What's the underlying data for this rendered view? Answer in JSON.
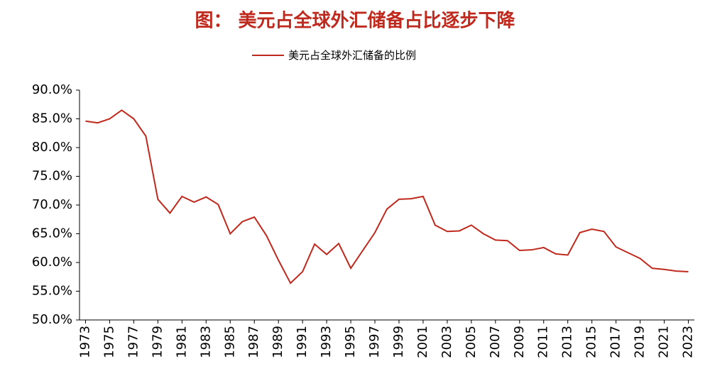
{
  "chart_data": {
    "type": "line",
    "title": "图： 美元占全球外汇储备占比逐步下降",
    "x": [
      1973,
      1974,
      1975,
      1976,
      1977,
      1978,
      1979,
      1980,
      1981,
      1982,
      1983,
      1984,
      1985,
      1986,
      1987,
      1988,
      1989,
      1990,
      1991,
      1992,
      1993,
      1994,
      1995,
      1996,
      1997,
      1998,
      1999,
      2000,
      2001,
      2002,
      2003,
      2004,
      2005,
      2006,
      2007,
      2008,
      2009,
      2010,
      2011,
      2012,
      2013,
      2014,
      2015,
      2016,
      2017,
      2018,
      2019,
      2020,
      2021,
      2022,
      2023
    ],
    "series": [
      {
        "name": "美元占全球外汇储备的比例",
        "color": "#c0291d",
        "values": [
          84.6,
          84.3,
          85.0,
          86.5,
          85.0,
          82.0,
          71.0,
          68.6,
          71.5,
          70.5,
          71.4,
          70.1,
          65.0,
          67.1,
          67.9,
          64.7,
          60.4,
          56.4,
          58.4,
          63.2,
          61.4,
          63.3,
          59.0,
          62.1,
          65.2,
          69.3,
          71.0,
          71.1,
          71.5,
          66.5,
          65.4,
          65.5,
          66.5,
          65.0,
          63.9,
          63.8,
          62.1,
          62.2,
          62.6,
          61.5,
          61.3,
          65.2,
          65.8,
          65.4,
          62.7,
          61.7,
          60.7,
          59.0,
          58.8,
          58.5,
          58.4
        ]
      }
    ],
    "xlim": [
      1972.5,
      2023.5
    ],
    "xticks": [
      1973,
      1975,
      1977,
      1979,
      1981,
      1983,
      1985,
      1987,
      1989,
      1991,
      1993,
      1995,
      1997,
      1999,
      2001,
      2003,
      2005,
      2007,
      2009,
      2011,
      2013,
      2015,
      2017,
      2019,
      2021,
      2023
    ],
    "ylim": [
      50,
      90
    ],
    "yticks": [
      {
        "value": 50,
        "label": "50.0%"
      },
      {
        "value": 55,
        "label": "55.0%"
      },
      {
        "value": 60,
        "label": "60.0%"
      },
      {
        "value": 65,
        "label": "65.0%"
      },
      {
        "value": 70,
        "label": "70.0%"
      },
      {
        "value": 75,
        "label": "75.0%"
      },
      {
        "value": 80,
        "label": "80.0%"
      },
      {
        "value": 85,
        "label": "85.0%"
      },
      {
        "value": 90,
        "label": "90.0%"
      }
    ],
    "legend": "top"
  }
}
